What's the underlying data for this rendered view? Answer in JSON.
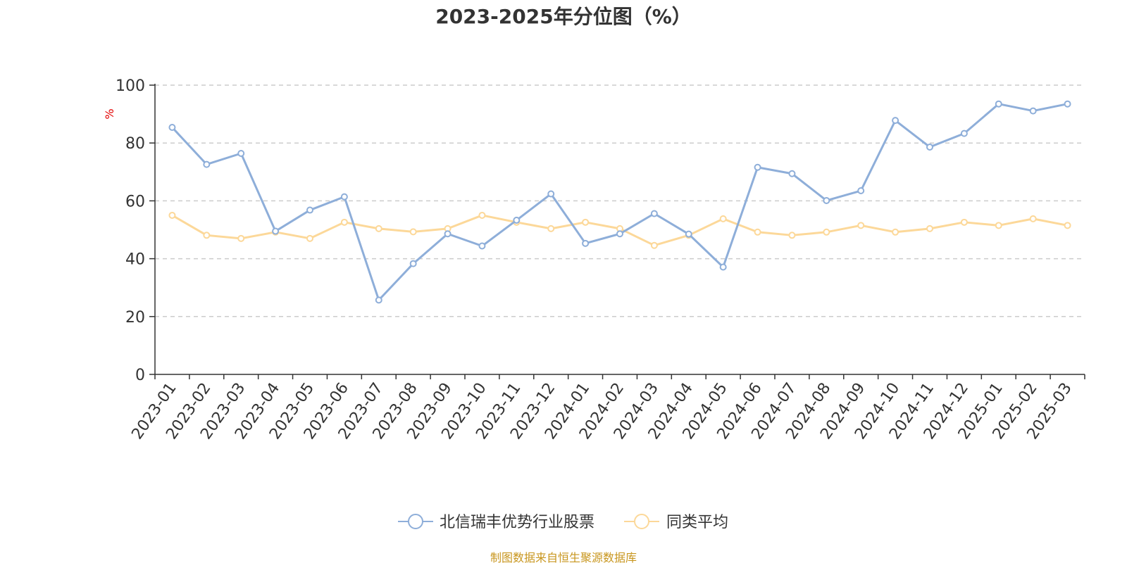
{
  "colors": {
    "series1": "#8eaed9",
    "series2": "#fcd899",
    "grid": "#cccccc",
    "axis": "#333333",
    "ylabel": "#e30000",
    "source": "#c8961e"
  },
  "chart_data": {
    "type": "line",
    "title": "2023-2025年分位图（%）",
    "ylabel": "%",
    "xlabel": "",
    "ylim": [
      0,
      100
    ],
    "yticks": [
      "0",
      "20",
      "40",
      "60",
      "80",
      "100"
    ],
    "grid": true,
    "legend_position": "bottom-center",
    "categories": [
      "2023-01",
      "2023-02",
      "2023-03",
      "2023-04",
      "2023-05",
      "2023-06",
      "2023-07",
      "2023-08",
      "2023-09",
      "2023-10",
      "2023-11",
      "2023-12",
      "2024-01",
      "2024-02",
      "2024-03",
      "2024-04",
      "2024-05",
      "2024-06",
      "2024-07",
      "2024-08",
      "2024-09",
      "2024-10",
      "2024-11",
      "2024-12",
      "2025-01",
      "2025-02",
      "2025-03"
    ],
    "series": [
      {
        "name": "北信瑞丰优势行业股票",
        "values": [
          85.4,
          72.6,
          76.4,
          49.5,
          56.8,
          61.4,
          25.7,
          38.3,
          48.6,
          44.4,
          53.3,
          62.4,
          45.3,
          48.6,
          55.6,
          48.5,
          37.1,
          71.6,
          69.4,
          60.1,
          63.5,
          87.8,
          78.6,
          83.3,
          93.5,
          91.1,
          93.5
        ]
      },
      {
        "name": "同类平均",
        "values": [
          55.0,
          48.1,
          47.0,
          49.2,
          47.0,
          52.6,
          50.4,
          49.3,
          50.4,
          55.0,
          52.6,
          50.4,
          52.6,
          50.4,
          44.6,
          48.1,
          53.8,
          49.2,
          48.1,
          49.2,
          51.5,
          49.2,
          50.4,
          52.6,
          51.5,
          53.8,
          51.5
        ]
      }
    ]
  },
  "source": "制图数据来自恒生聚源数据库"
}
